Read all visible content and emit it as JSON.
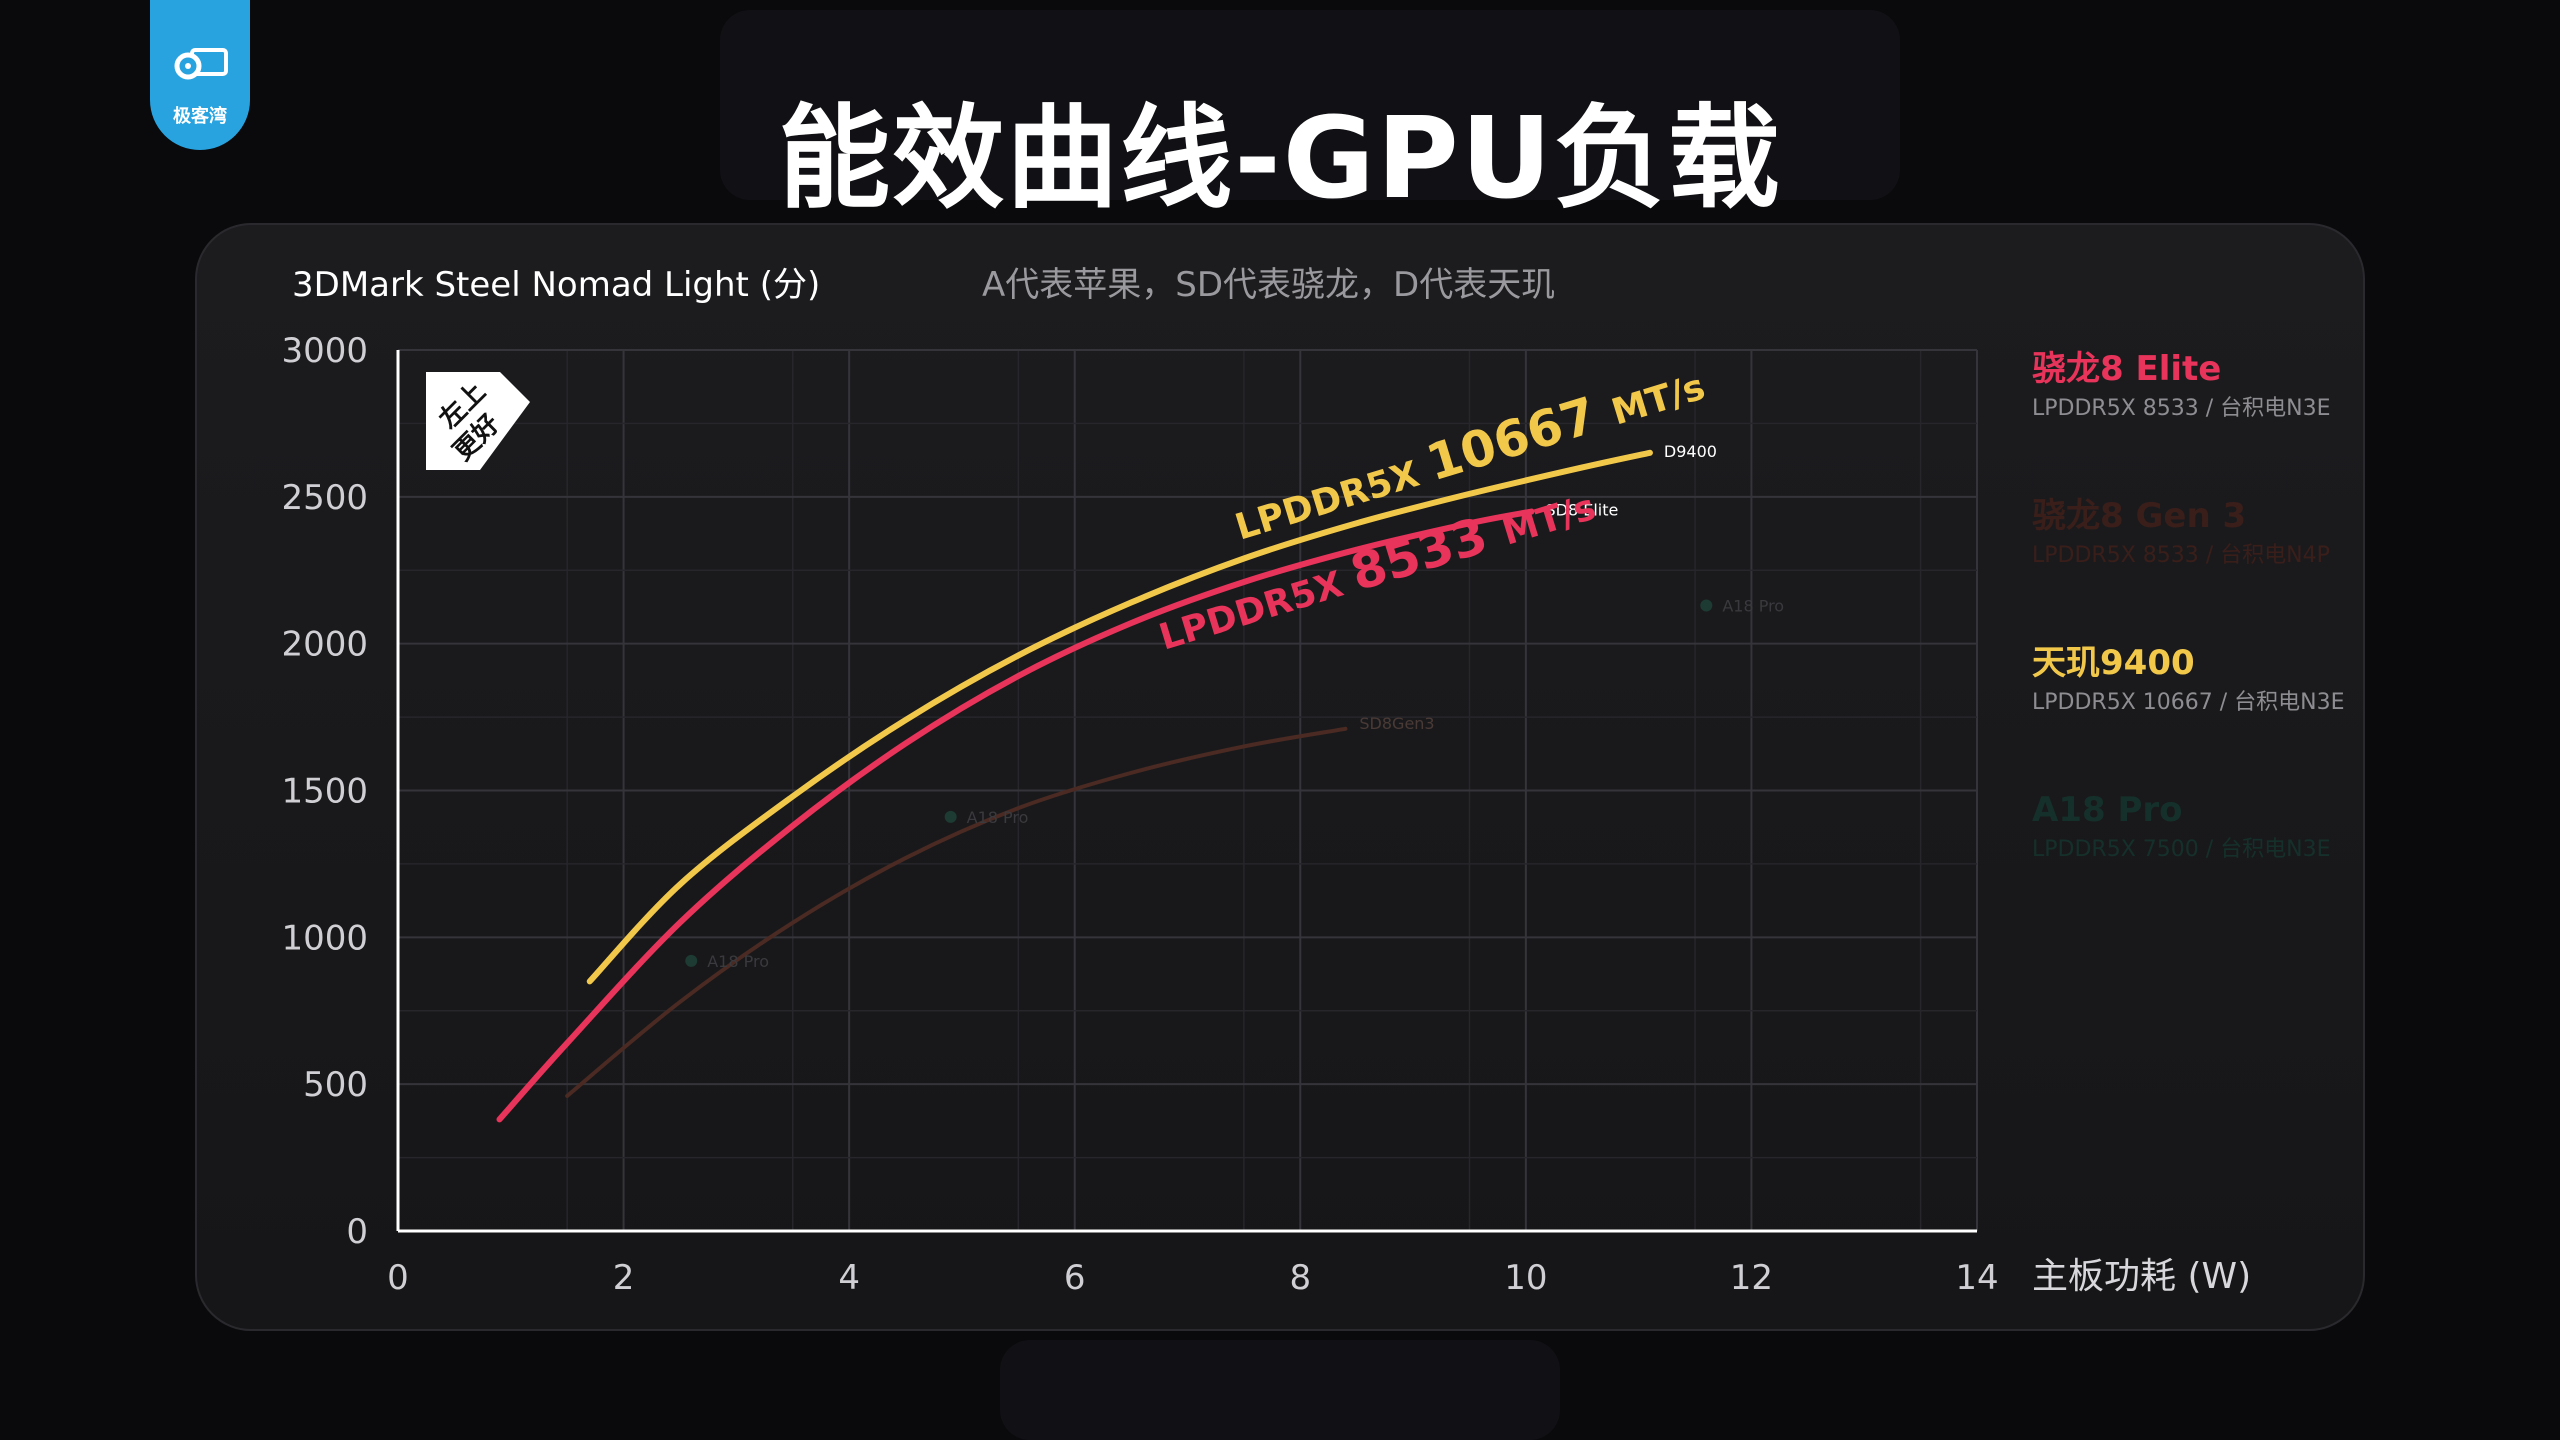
{
  "logo": {
    "text": "极客湾"
  },
  "page": {
    "title": "能效曲线-GPU负载"
  },
  "chart_data": {
    "type": "line",
    "ylabel": "3DMark Steel Nomad Light (分)",
    "subtitle": "A代表苹果，SD代表骁龙，D代表天玑",
    "xlabel": "主板功耗 (W)",
    "xlim": [
      0,
      14
    ],
    "ylim": [
      0,
      3000
    ],
    "x_ticks": [
      0,
      2,
      4,
      6,
      8,
      10,
      12,
      14
    ],
    "y_ticks": [
      0,
      500,
      1000,
      1500,
      2000,
      2500,
      3000
    ],
    "grid": true,
    "badge": "左上 更好",
    "legend": [
      {
        "name": "骁龙8 Elite",
        "sub": "LPDDR5X 8533 / 台积电N3E",
        "color": "#e8345a",
        "dim": false
      },
      {
        "name": "骁龙8 Gen 3",
        "sub": "LPDDR5X 8533 / 台积电N4P",
        "color": "#3a1e1a",
        "dim": true
      },
      {
        "name": "天玑9400",
        "sub": "LPDDR5X 10667 / 台积电N3E",
        "color": "#f2c84b",
        "dim": false
      },
      {
        "name": "A18 Pro",
        "sub": "LPDDR5X 7500 / 台积电N3E",
        "color": "#15302a",
        "dim": true
      }
    ],
    "series": [
      {
        "name": "D9400",
        "color": "#f2c84b",
        "x": [
          1.7,
          2.5,
          3.5,
          4.5,
          5.5,
          6.5,
          7.5,
          8.5,
          9.5,
          10.5,
          11.1
        ],
        "y": [
          850,
          1180,
          1480,
          1740,
          1960,
          2140,
          2290,
          2410,
          2510,
          2600,
          2650
        ]
      },
      {
        "name": "SD8 Elite",
        "color": "#e8345a",
        "x": [
          0.9,
          1.5,
          2.5,
          3.5,
          4.5,
          5.5,
          6.5,
          7.5,
          8.5,
          9.5,
          10.05
        ],
        "y": [
          380,
          640,
          1050,
          1380,
          1660,
          1890,
          2070,
          2210,
          2320,
          2410,
          2450
        ]
      },
      {
        "name": "SD8Gen3",
        "color": "#4a2a22",
        "x": [
          1.5,
          2.5,
          3.5,
          4.5,
          5.5,
          6.5,
          7.5,
          8.4
        ],
        "y": [
          460,
          780,
          1050,
          1270,
          1440,
          1560,
          1650,
          1710
        ]
      }
    ],
    "points": [
      {
        "name": "A18 Pro",
        "x": 2.6,
        "y": 920
      },
      {
        "name": "A18 Pro",
        "x": 4.9,
        "y": 1410
      },
      {
        "name": "A18 Pro",
        "x": 11.6,
        "y": 2130
      }
    ],
    "annotations": [
      {
        "text": "LPDDR5X 10667 MT/s",
        "series": "D9400"
      },
      {
        "text": "LPDDR5X 8533 MT/s",
        "series": "SD8 Elite"
      }
    ]
  }
}
